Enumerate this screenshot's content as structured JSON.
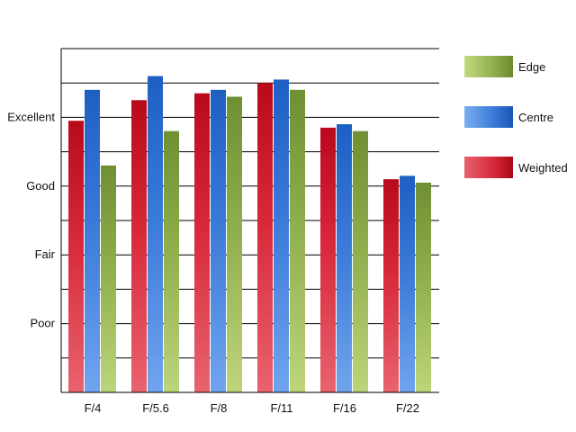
{
  "chart_data": {
    "type": "bar",
    "title": "",
    "xlabel": "",
    "ylabel": "",
    "categories": [
      "F/4",
      "F/5.6",
      "F/8",
      "F/11",
      "F/16",
      "F/22"
    ],
    "y_tick_labels": [
      {
        "value": 2,
        "label": "Poor"
      },
      {
        "value": 4,
        "label": "Fair"
      },
      {
        "value": 6,
        "label": "Good"
      },
      {
        "value": 8,
        "label": "Excellent"
      }
    ],
    "ylim": [
      0,
      10
    ],
    "y_gridline_step": 1,
    "grid": true,
    "legend_position": "right",
    "series": [
      {
        "name": "Weighted",
        "color": "#c0101e",
        "values": [
          7.9,
          8.5,
          8.7,
          9.0,
          7.7,
          6.2
        ]
      },
      {
        "name": "Centre",
        "color": "#2565c8",
        "values": [
          8.8,
          9.2,
          8.8,
          9.1,
          7.8,
          6.3
        ]
      },
      {
        "name": "Edge",
        "color": "#7a9e3c",
        "values": [
          6.6,
          7.6,
          8.6,
          8.8,
          7.6,
          6.1
        ]
      }
    ],
    "legend_order": [
      "Edge",
      "Centre",
      "Weighted"
    ]
  }
}
